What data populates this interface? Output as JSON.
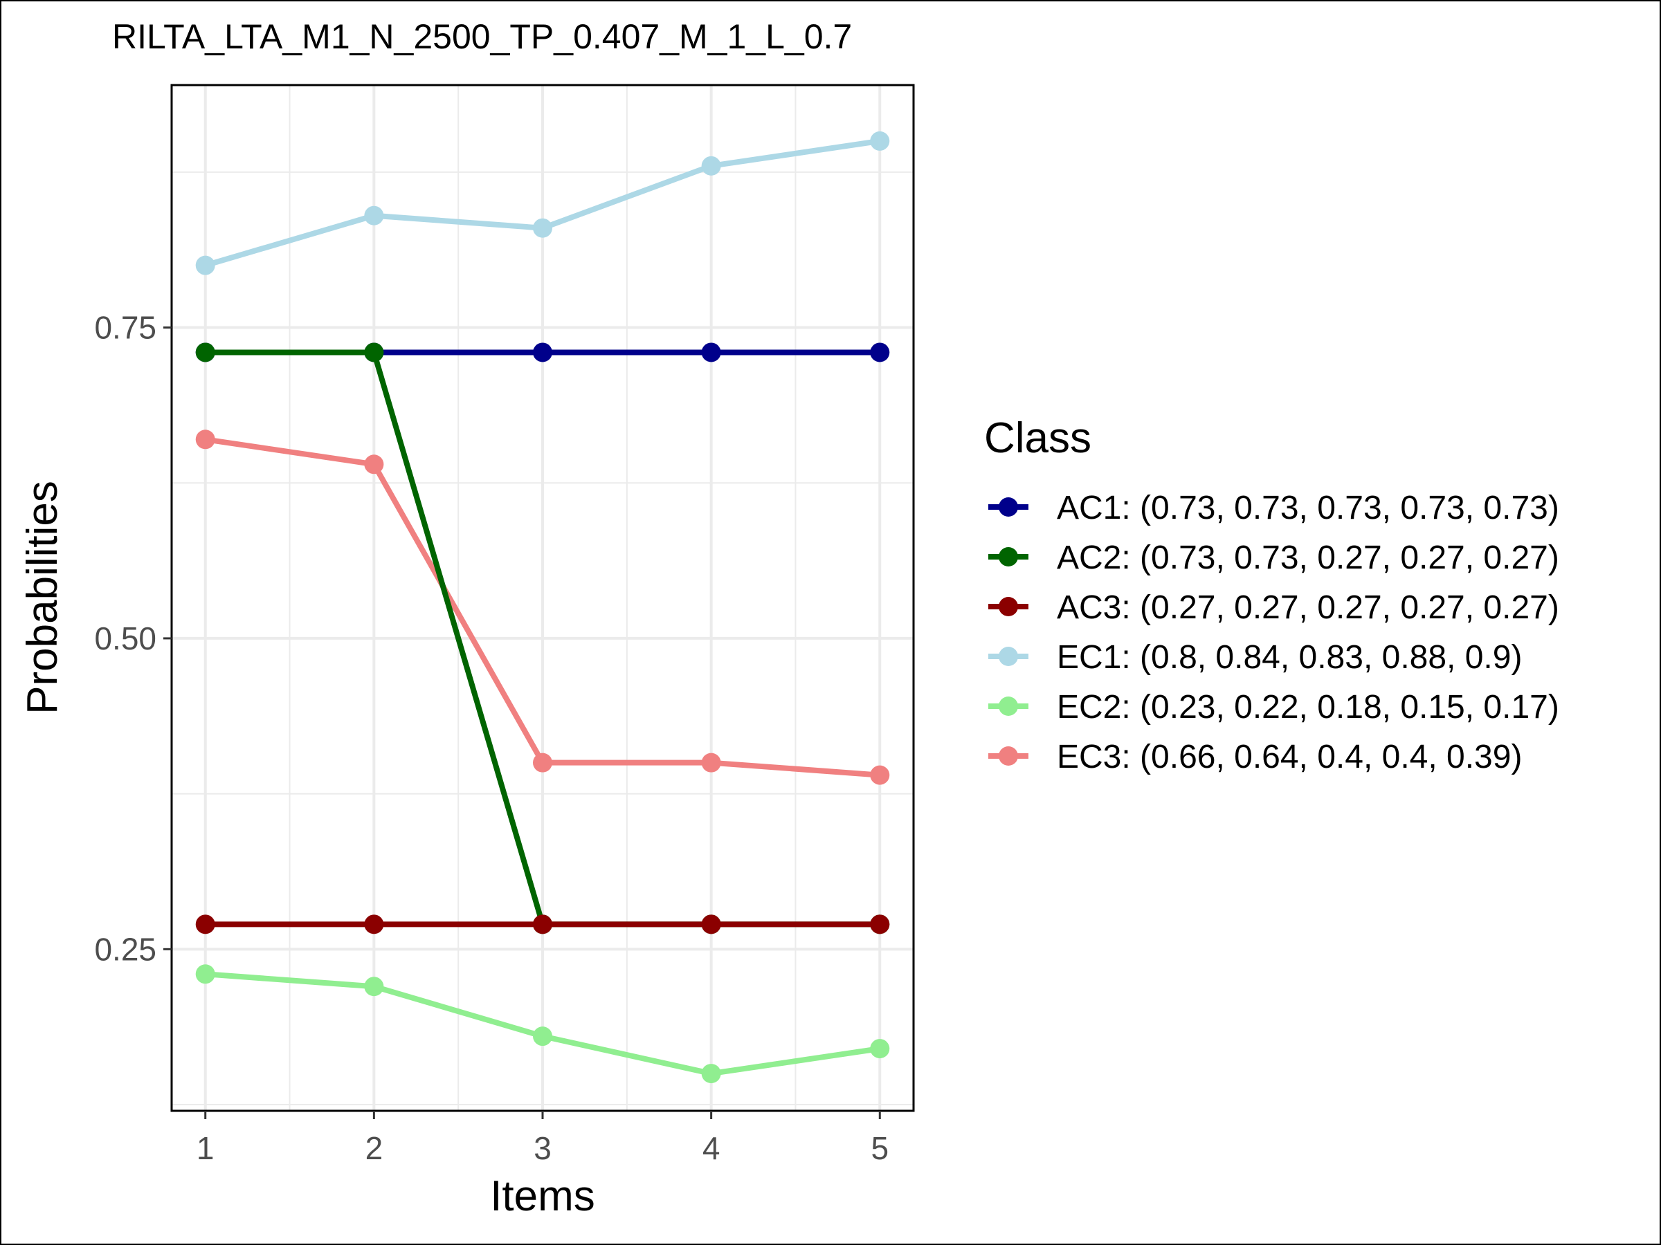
{
  "chart_data": {
    "type": "line",
    "title": "RILTA_LTA_M1_N_2500_TP_0.407_M_1_L_0.7",
    "xlabel": "Items",
    "ylabel": "Probabilities",
    "x": [
      1,
      2,
      3,
      4,
      5
    ],
    "x_ticks": [
      "1",
      "2",
      "3",
      "4",
      "5"
    ],
    "xlim": [
      0.8,
      5.2
    ],
    "y_ticks": [
      "0.25",
      "0.50",
      "0.75"
    ],
    "ylim": [
      0.12,
      0.945
    ],
    "grid": true,
    "legend_position": "right",
    "legend_title": "Class",
    "series": [
      {
        "name": "AC1: (0.73, 0.73, 0.73, 0.73, 0.73)",
        "color": "#00008b",
        "values": [
          0.73,
          0.73,
          0.73,
          0.73,
          0.73
        ]
      },
      {
        "name": "AC2: (0.73, 0.73, 0.27, 0.27, 0.27)",
        "color": "#006400",
        "values": [
          0.73,
          0.73,
          0.27,
          0.27,
          0.27
        ]
      },
      {
        "name": "AC3: (0.27, 0.27, 0.27, 0.27, 0.27)",
        "color": "#8b0000",
        "values": [
          0.27,
          0.27,
          0.27,
          0.27,
          0.27
        ]
      },
      {
        "name": "EC1: (0.8, 0.84, 0.83, 0.88, 0.9)",
        "color": "#add8e6",
        "values": [
          0.8,
          0.84,
          0.83,
          0.88,
          0.9
        ]
      },
      {
        "name": "EC2: (0.23, 0.22, 0.18, 0.15, 0.17)",
        "color": "#90ee90",
        "values": [
          0.23,
          0.22,
          0.18,
          0.15,
          0.17
        ]
      },
      {
        "name": "EC3: (0.66, 0.64, 0.4, 0.4, 0.39)",
        "color": "#f08080",
        "values": [
          0.66,
          0.64,
          0.4,
          0.4,
          0.39
        ]
      }
    ],
    "draw_order": [
      3,
      4,
      5,
      0,
      1,
      2
    ]
  }
}
